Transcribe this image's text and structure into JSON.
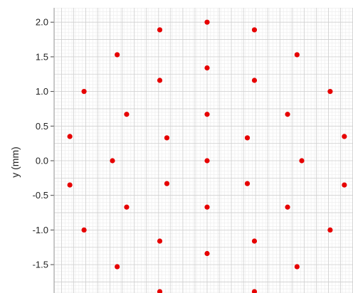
{
  "chart_data": {
    "type": "scatter",
    "title": "",
    "xlabel": "",
    "ylabel": "y (mm)",
    "ylim": [
      -1.9,
      2.2
    ],
    "grid": true,
    "minor_grid": true,
    "yticks": [
      "2.0",
      "1.5",
      "1.0",
      "0.5",
      "0.0",
      "-0.5",
      "-1.0",
      "-1.5"
    ],
    "ytick_values": [
      2.0,
      1.5,
      1.0,
      0.5,
      0.0,
      -0.5,
      -1.0,
      -1.5
    ],
    "series": [
      {
        "color": "#e60000",
        "points": [
          [
            0.0,
            2.0
          ],
          [
            -1.0,
            1.89
          ],
          [
            1.0,
            1.89
          ],
          [
            -1.9,
            1.53
          ],
          [
            1.9,
            1.53
          ],
          [
            0.0,
            1.34
          ],
          [
            -1.0,
            1.16
          ],
          [
            1.0,
            1.16
          ],
          [
            -2.6,
            1.0
          ],
          [
            2.6,
            1.0
          ],
          [
            -1.7,
            0.67
          ],
          [
            0.0,
            0.67
          ],
          [
            1.7,
            0.67
          ],
          [
            -2.9,
            0.35
          ],
          [
            -0.85,
            0.33
          ],
          [
            0.85,
            0.33
          ],
          [
            2.9,
            0.35
          ],
          [
            -2.0,
            0.0
          ],
          [
            0.0,
            0.0
          ],
          [
            2.0,
            0.0
          ],
          [
            -2.9,
            -0.35
          ],
          [
            -0.85,
            -0.33
          ],
          [
            0.85,
            -0.33
          ],
          [
            2.9,
            -0.35
          ],
          [
            -1.7,
            -0.67
          ],
          [
            0.0,
            -0.67
          ],
          [
            1.7,
            -0.67
          ],
          [
            -2.6,
            -1.0
          ],
          [
            2.6,
            -1.0
          ],
          [
            -1.0,
            -1.16
          ],
          [
            1.0,
            -1.16
          ],
          [
            0.0,
            -1.34
          ],
          [
            -1.9,
            -1.53
          ],
          [
            1.9,
            -1.53
          ],
          [
            -1.0,
            -1.89
          ],
          [
            1.0,
            -1.89
          ]
        ]
      }
    ]
  }
}
